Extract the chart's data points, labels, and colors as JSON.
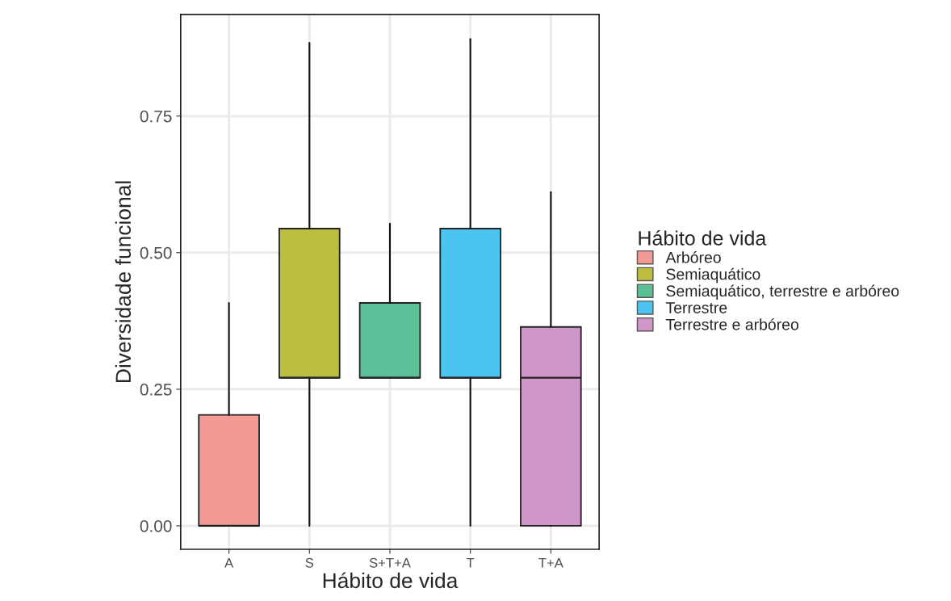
{
  "chart_data": {
    "type": "box",
    "xlabel": "Hábito de vida",
    "ylabel": "Diversidade funcional",
    "legend_title": "Hábito de vida",
    "categories": [
      "A",
      "S",
      "S+T+A",
      "T",
      "T+A"
    ],
    "ylim": [
      -0.043,
      0.936
    ],
    "yticks": [
      {
        "value": 0,
        "label": "0.00"
      },
      0.25,
      {
        "value": 0.5,
        "label": "0.50"
      },
      0.75
    ],
    "grid": true,
    "legend": "right",
    "series": [
      {
        "name": "Arbóreo",
        "color": "#f49a94",
        "boxes": [
          {
            "low": 0,
            "q1": 0,
            "median": 0,
            "q3": 0.203,
            "high": 0.408
          },
          null,
          null,
          null,
          null
        ]
      },
      {
        "name": "Semiaquático",
        "color": "#bdbe40",
        "boxes": [
          null,
          {
            "low": 0,
            "q1": 0.271,
            "median": 0.271,
            "q3": 0.544,
            "high": 0.884
          },
          null,
          null,
          null
        ]
      },
      {
        "name": "Semiaquático, terrestre e arbóreo",
        "color": "#5bbf97",
        "boxes": [
          null,
          null,
          {
            "low": 0.271,
            "q1": 0.271,
            "median": 0.271,
            "q3": 0.408,
            "high": 0.553
          },
          null,
          null
        ]
      },
      {
        "name": "Terrestre",
        "color": "#4bc5ef",
        "boxes": [
          null,
          null,
          null,
          {
            "low": 0,
            "q1": 0.271,
            "median": 0.271,
            "q3": 0.544,
            "high": 0.891
          },
          null
        ]
      },
      {
        "name": "Terrestre e arbóreo",
        "color": "#cf97c7",
        "boxes": [
          null,
          null,
          null,
          null,
          {
            "low": 0,
            "q1": 0,
            "median": 0.271,
            "q3": 0.364,
            "high": 0.611
          }
        ]
      }
    ]
  }
}
